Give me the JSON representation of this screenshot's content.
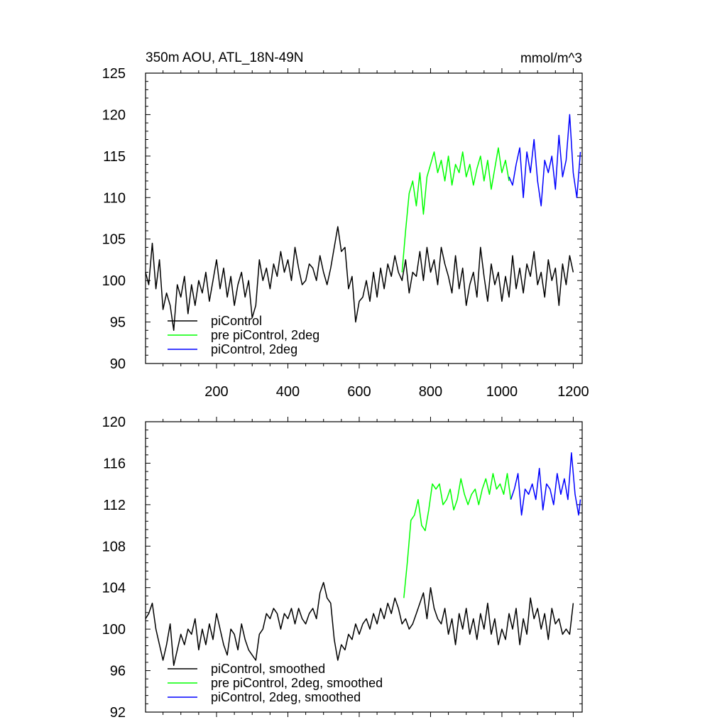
{
  "chart_data": [
    {
      "type": "line",
      "title": "350m AOU, ATL_18N-49N",
      "units": "mmol/m^3",
      "xlim": [
        1,
        1225
      ],
      "ylim": [
        90,
        125
      ],
      "x_ticks": [
        200,
        400,
        600,
        800,
        1000,
        1200
      ],
      "x_tick_labels": [
        "200",
        "400",
        "600",
        "800",
        "1000",
        "1200"
      ],
      "y_ticks": [
        90,
        95,
        100,
        105,
        110,
        115,
        120,
        125
      ],
      "y_tick_labels": [
        "90",
        "95",
        "100",
        "105",
        "110",
        "115",
        "120",
        "125"
      ],
      "legend_position": "bottom-left",
      "series": [
        {
          "name": "piControl",
          "color": "#000000",
          "x": [
            1,
            10,
            20,
            30,
            40,
            50,
            60,
            70,
            80,
            90,
            100,
            110,
            120,
            130,
            140,
            150,
            160,
            170,
            180,
            190,
            200,
            210,
            220,
            230,
            240,
            250,
            260,
            270,
            280,
            290,
            300,
            310,
            320,
            330,
            340,
            350,
            360,
            370,
            380,
            390,
            400,
            410,
            420,
            430,
            440,
            450,
            460,
            470,
            480,
            490,
            500,
            510,
            520,
            530,
            540,
            550,
            560,
            570,
            580,
            590,
            600,
            610,
            620,
            630,
            640,
            650,
            660,
            670,
            680,
            690,
            700,
            710,
            720,
            730,
            740,
            750,
            760,
            770,
            780,
            790,
            800,
            810,
            820,
            830,
            840,
            850,
            860,
            870,
            880,
            890,
            900,
            910,
            920,
            930,
            940,
            950,
            960,
            970,
            980,
            990,
            1000,
            1010,
            1020,
            1030,
            1040,
            1050,
            1060,
            1070,
            1080,
            1090,
            1100,
            1110,
            1120,
            1130,
            1140,
            1150,
            1160,
            1170,
            1180,
            1190,
            1200
          ],
          "values": [
            101,
            99.5,
            104.5,
            99,
            102.5,
            96.5,
            98.5,
            97,
            94,
            99.5,
            98,
            100.5,
            96,
            99.5,
            97,
            100,
            98.5,
            101,
            97.5,
            100,
            102.5,
            99,
            101.5,
            98,
            100.5,
            97,
            99.5,
            101,
            98,
            100,
            95.5,
            97,
            102.5,
            100,
            101.5,
            99,
            102,
            100.5,
            103.5,
            101,
            102.5,
            100,
            104,
            101.5,
            99.5,
            100,
            102,
            101.5,
            100,
            103,
            101,
            99.5,
            101.5,
            104,
            106.5,
            103.5,
            104,
            99,
            100.5,
            95,
            97.5,
            98,
            100,
            97.5,
            101,
            98,
            101.5,
            99,
            102,
            100.5,
            103,
            101,
            100,
            102.5,
            98.5,
            101,
            100.5,
            103.5,
            100,
            104,
            101,
            102.5,
            99.5,
            104,
            102,
            100.5,
            98.5,
            103,
            99,
            101.5,
            97,
            99.5,
            101,
            98,
            104,
            100.5,
            97.5,
            102,
            99.5,
            101,
            97.5,
            100.5,
            98,
            103,
            99,
            101.5,
            98.5,
            102,
            100.5,
            103.5,
            99.5,
            101,
            98,
            102.5,
            100,
            101.5,
            97,
            102,
            99.5,
            103,
            101
          ]
        },
        {
          "name": "pre piControl, 2deg",
          "color": "#00ff00",
          "x": [
            720,
            730,
            740,
            750,
            760,
            770,
            780,
            790,
            800,
            810,
            820,
            830,
            840,
            850,
            860,
            870,
            880,
            890,
            900,
            910,
            920,
            930,
            940,
            950,
            960,
            970,
            980,
            990,
            1000,
            1010,
            1020
          ],
          "values": [
            101,
            106,
            110.5,
            112,
            109,
            113,
            108,
            112.5,
            114,
            115.5,
            113,
            114.5,
            112,
            115,
            111.5,
            114,
            113,
            115.5,
            112.5,
            114,
            111.5,
            113.5,
            115,
            112,
            114.5,
            111,
            113.5,
            116,
            113,
            114.5,
            112
          ]
        },
        {
          "name": "piControl, 2deg",
          "color": "#0000ff",
          "x": [
            1020,
            1030,
            1040,
            1050,
            1060,
            1070,
            1080,
            1090,
            1100,
            1110,
            1120,
            1130,
            1140,
            1150,
            1160,
            1170,
            1180,
            1190,
            1200,
            1210,
            1220
          ],
          "values": [
            112.5,
            111.5,
            114,
            116,
            110,
            115.5,
            113,
            117,
            112,
            109,
            114.5,
            113,
            115,
            111,
            117.5,
            112.5,
            114.5,
            120,
            113,
            110,
            115.5
          ]
        }
      ]
    },
    {
      "type": "line",
      "title": "",
      "xlim": [
        1,
        1225
      ],
      "ylim": [
        92,
        120
      ],
      "x_ticks": [
        200,
        400,
        600,
        800,
        1000,
        1200
      ],
      "y_ticks": [
        92,
        96,
        100,
        104,
        108,
        112,
        116,
        120
      ],
      "y_tick_labels": [
        "92",
        "96",
        "100",
        "104",
        "108",
        "112",
        "116",
        "120"
      ],
      "legend_position": "bottom-left",
      "series": [
        {
          "name": "piControl, smoothed",
          "color": "#000000",
          "x": [
            1,
            10,
            20,
            30,
            40,
            50,
            60,
            70,
            80,
            90,
            100,
            110,
            120,
            130,
            140,
            150,
            160,
            170,
            180,
            190,
            200,
            210,
            220,
            230,
            240,
            250,
            260,
            270,
            280,
            290,
            300,
            310,
            320,
            330,
            340,
            350,
            360,
            370,
            380,
            390,
            400,
            410,
            420,
            430,
            440,
            450,
            460,
            470,
            480,
            490,
            500,
            510,
            520,
            530,
            540,
            550,
            560,
            570,
            580,
            590,
            600,
            610,
            620,
            630,
            640,
            650,
            660,
            670,
            680,
            690,
            700,
            710,
            720,
            730,
            740,
            750,
            760,
            770,
            780,
            790,
            800,
            810,
            820,
            830,
            840,
            850,
            860,
            870,
            880,
            890,
            900,
            910,
            920,
            930,
            940,
            950,
            960,
            970,
            980,
            990,
            1000,
            1010,
            1020,
            1030,
            1040,
            1050,
            1060,
            1070,
            1080,
            1090,
            1100,
            1110,
            1120,
            1130,
            1140,
            1150,
            1160,
            1170,
            1180,
            1190,
            1200
          ],
          "values": [
            101,
            101.5,
            102.5,
            100,
            98.5,
            97,
            98.5,
            100.5,
            96.5,
            98,
            99.5,
            98.5,
            100,
            99.5,
            101,
            98,
            100,
            98.5,
            100.5,
            99,
            101.5,
            100,
            98.5,
            97.5,
            100,
            99.5,
            98,
            100.5,
            99,
            98,
            97.5,
            97,
            99.5,
            100,
            101.5,
            101,
            102,
            101.5,
            100,
            101.5,
            101,
            102,
            100.5,
            102,
            101,
            100.5,
            101.5,
            102,
            101,
            103.5,
            104.5,
            103,
            102.5,
            99,
            97,
            98.5,
            98,
            99.5,
            99,
            100.5,
            99.5,
            100.5,
            101,
            100,
            101.5,
            100.5,
            102,
            101,
            102.5,
            101.5,
            103,
            102,
            100.5,
            101,
            100,
            100.5,
            101.5,
            102.5,
            103.5,
            101,
            104,
            102,
            101,
            100.5,
            102,
            99.5,
            101,
            98.5,
            101.5,
            100,
            102,
            99.5,
            101,
            99,
            101.5,
            100,
            102.5,
            99.5,
            101,
            98.5,
            100,
            99,
            101.5,
            100,
            102,
            98.5,
            101,
            99.5,
            103,
            101,
            102,
            100,
            101.5,
            99,
            102,
            100.5,
            101,
            99.5,
            100,
            99.5,
            102.5
          ]
        },
        {
          "name": "pre piControl, 2deg, smoothed",
          "color": "#00ff00",
          "x": [
            725,
            735,
            745,
            755,
            765,
            775,
            785,
            795,
            805,
            815,
            825,
            835,
            845,
            855,
            865,
            875,
            885,
            895,
            905,
            915,
            925,
            935,
            945,
            955,
            965,
            975,
            985,
            995,
            1005,
            1015,
            1025
          ],
          "values": [
            103,
            106.5,
            110.5,
            111,
            112.5,
            110,
            109.5,
            111.5,
            114,
            113.5,
            114,
            112,
            112.5,
            113.5,
            111.5,
            112.5,
            114.5,
            113,
            112,
            113,
            113.5,
            112,
            113.5,
            114.5,
            113,
            115,
            113.5,
            114,
            113,
            115,
            112.5
          ]
        },
        {
          "name": "piControl, 2deg, smoothed",
          "color": "#0000ff",
          "x": [
            1025,
            1035,
            1045,
            1055,
            1065,
            1075,
            1085,
            1095,
            1105,
            1115,
            1125,
            1135,
            1145,
            1155,
            1165,
            1175,
            1185,
            1195,
            1205,
            1215,
            1220
          ],
          "values": [
            112.5,
            113.5,
            115,
            111,
            113.5,
            113,
            114,
            112.5,
            115.5,
            111.5,
            114,
            113.5,
            112,
            115,
            113,
            114.5,
            112.5,
            117,
            113,
            111,
            112.5
          ]
        }
      ]
    }
  ]
}
